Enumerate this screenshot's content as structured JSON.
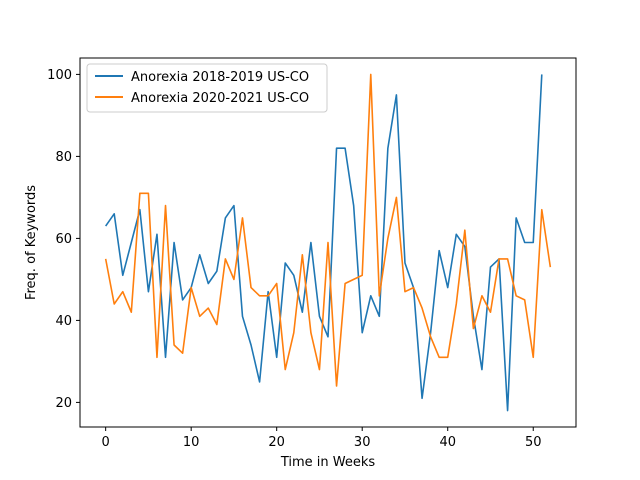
{
  "chart_data": {
    "type": "line",
    "title": "",
    "xlabel": "Time in Weeks",
    "ylabel": "Freq. of Keywords",
    "xlim": [
      -3,
      55
    ],
    "ylim": [
      14,
      104
    ],
    "xticks": [
      0,
      10,
      20,
      30,
      40,
      50
    ],
    "yticks": [
      20,
      40,
      60,
      80,
      100
    ],
    "grid": false,
    "legend_position": "upper-left",
    "series": [
      {
        "name": "Anorexia 2018-2019 US-CO",
        "color": "#1f77b4",
        "x": [
          0,
          1,
          2,
          3,
          4,
          5,
          6,
          7,
          8,
          9,
          10,
          11,
          12,
          13,
          14,
          15,
          16,
          17,
          18,
          19,
          20,
          21,
          22,
          23,
          24,
          25,
          26,
          27,
          28,
          29,
          30,
          31,
          32,
          33,
          34,
          35,
          36,
          37,
          38,
          39,
          40,
          41,
          42,
          43,
          44,
          45,
          46,
          47,
          48,
          49,
          50,
          51
        ],
        "values": [
          63,
          66,
          51,
          59,
          67,
          47,
          61,
          31,
          59,
          45,
          48,
          56,
          49,
          52,
          65,
          68,
          41,
          34,
          25,
          47,
          31,
          54,
          51,
          42,
          59,
          41,
          36,
          82,
          82,
          68,
          37,
          46,
          41,
          82,
          95,
          54,
          48,
          21,
          37,
          57,
          48,
          61,
          58,
          41,
          28,
          53,
          55,
          18,
          65,
          59,
          59,
          100
        ]
      },
      {
        "name": "Anorexia 2020-2021 US-CO",
        "color": "#ff7f0e",
        "x": [
          0,
          1,
          2,
          3,
          4,
          5,
          6,
          7,
          8,
          9,
          10,
          11,
          12,
          13,
          14,
          15,
          16,
          17,
          18,
          19,
          20,
          21,
          22,
          23,
          24,
          25,
          26,
          27,
          28,
          29,
          30,
          31,
          32,
          33,
          34,
          35,
          36,
          37,
          38,
          39,
          40,
          41,
          42,
          43,
          44,
          45,
          46,
          47,
          48,
          49,
          50,
          51,
          52
        ],
        "values": [
          55,
          44,
          47,
          42,
          71,
          71,
          31,
          68,
          34,
          32,
          48,
          41,
          43,
          39,
          55,
          50,
          65,
          48,
          46,
          46,
          49,
          28,
          37,
          56,
          37,
          28,
          59,
          24,
          49,
          50,
          51,
          100,
          46,
          60,
          70,
          47,
          48,
          43,
          36,
          31,
          31,
          44,
          62,
          38,
          46,
          42,
          55,
          55,
          46,
          45,
          31,
          67,
          53
        ]
      }
    ]
  }
}
